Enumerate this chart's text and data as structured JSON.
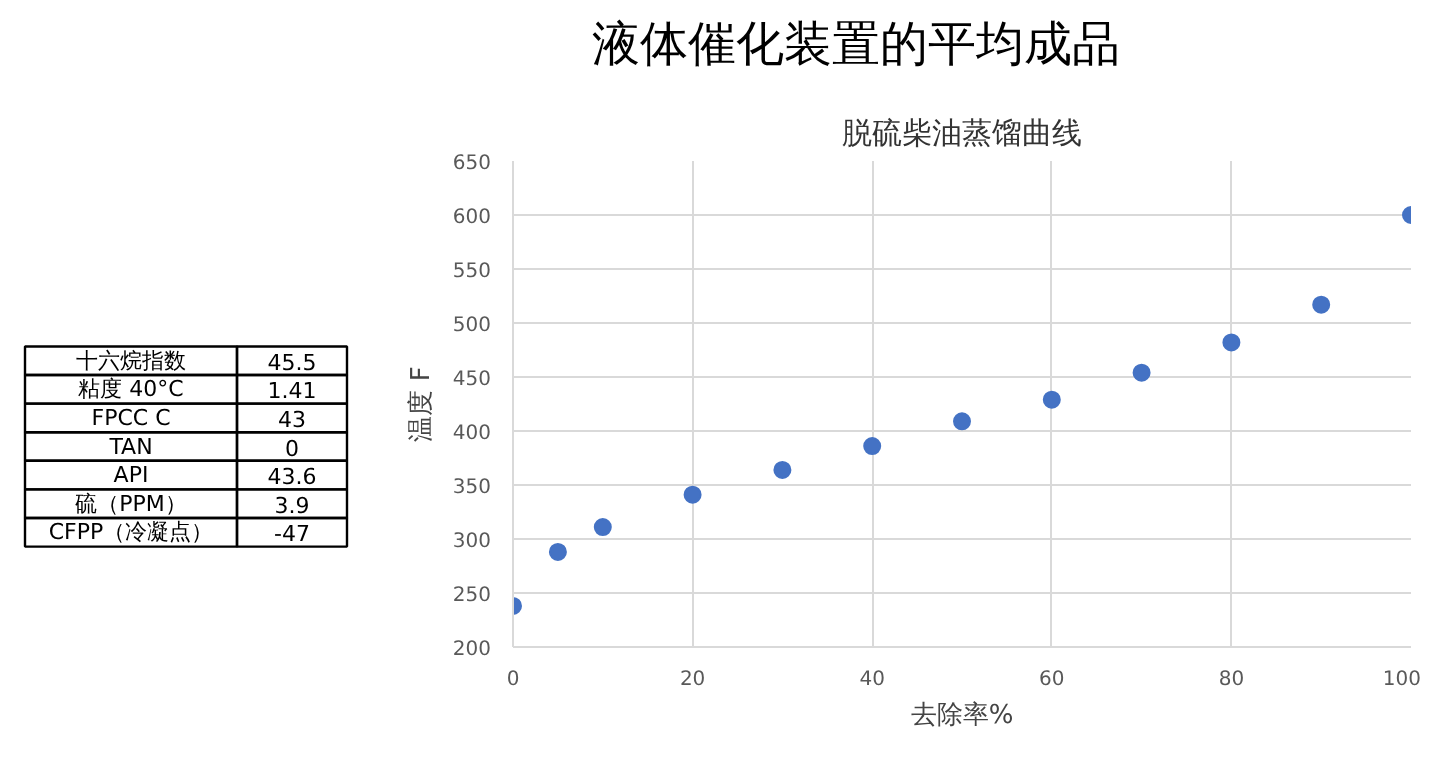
{
  "chart_data": [
    {
      "type": "other",
      "title": "液体催化装置的平均成品",
      "categories": [
        "十六烷指数",
        "粘度 40°C",
        "FPCC C",
        "TAN",
        "API",
        "硫（PPM）",
        "CFPP（冷凝点）"
      ],
      "value_labels": [
        "45.5",
        "1.41",
        "43",
        "0",
        "43.6",
        "3.9",
        "-47"
      ]
    },
    {
      "type": "scatter",
      "title": "脱硫柴油蒸馏曲线",
      "xlabel": "去除率%",
      "ylabel": "温度 F",
      "x": [
        0,
        5,
        10,
        20,
        30,
        40,
        50,
        60,
        70,
        80,
        90,
        100
      ],
      "series": [
        {
          "color": "#4472c4",
          "values": [
            238,
            288,
            311,
            341,
            364,
            386,
            409,
            429,
            454,
            482,
            517,
            600
          ]
        }
      ],
      "xlim": [
        0,
        100
      ],
      "xticks": [
        0,
        20,
        40,
        60,
        80,
        100
      ],
      "ylim": [
        200,
        650
      ],
      "yticks": [
        200,
        250,
        300,
        350,
        400,
        450,
        500,
        550,
        600,
        650
      ],
      "grid": true,
      "marker": "circle"
    }
  ]
}
